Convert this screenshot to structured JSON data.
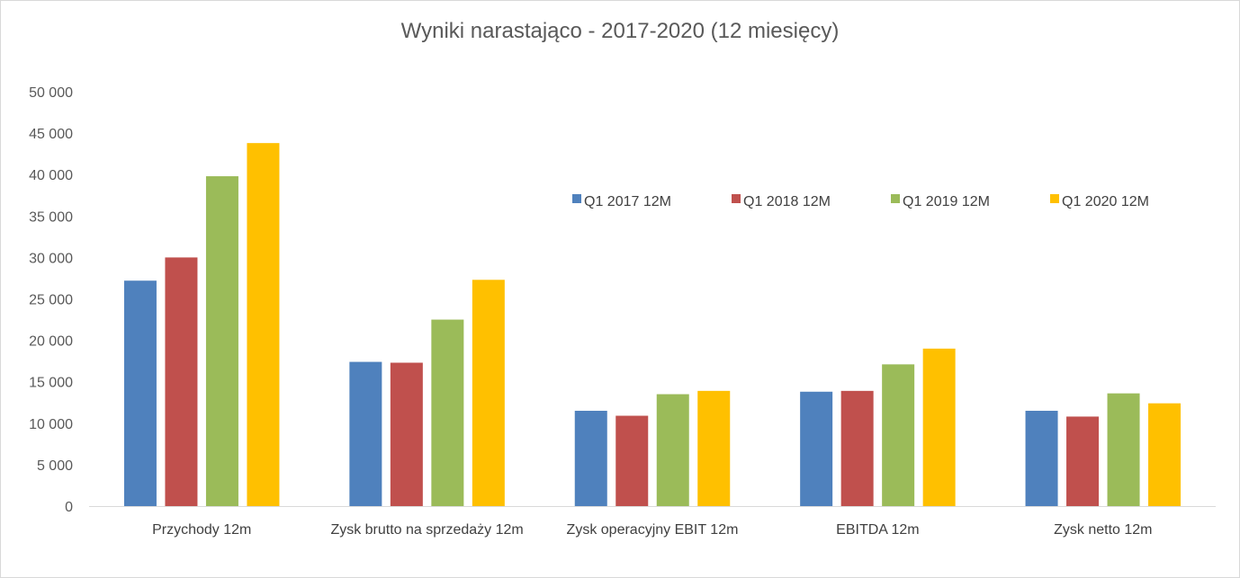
{
  "chart_data": {
    "type": "bar",
    "title": "Wyniki narastająco - 2017-2020 (12 miesięcy)",
    "xlabel": "",
    "ylabel": "",
    "ylim": [
      0,
      50000
    ],
    "yticks": [
      0,
      5000,
      10000,
      15000,
      20000,
      25000,
      30000,
      35000,
      40000,
      45000,
      50000
    ],
    "ytick_labels": [
      "0",
      "5 000",
      "10 000",
      "15 000",
      "20 000",
      "25 000",
      "30 000",
      "35 000",
      "40 000",
      "45 000",
      "50 000"
    ],
    "grid": false,
    "legend_position": "top-right",
    "categories": [
      "Przychody 12m",
      "Zysk brutto na sprzedaży 12m",
      "Zysk operacyjny EBIT 12m",
      "EBITDA 12m",
      "Zysk netto 12m"
    ],
    "series": [
      {
        "name": "Q1 2017 12M",
        "color": "#4f81bd",
        "values": [
          27200,
          17400,
          11500,
          13800,
          11500
        ]
      },
      {
        "name": "Q1 2018 12M",
        "color": "#c0504d",
        "values": [
          30000,
          17300,
          10900,
          13900,
          10800
        ]
      },
      {
        "name": "Q1 2019 12M",
        "color": "#9bbb59",
        "values": [
          39800,
          22500,
          13500,
          17100,
          13600
        ]
      },
      {
        "name": "Q1 2020 12M",
        "color": "#ffc000",
        "values": [
          43800,
          27300,
          13900,
          19000,
          12400
        ]
      }
    ]
  }
}
